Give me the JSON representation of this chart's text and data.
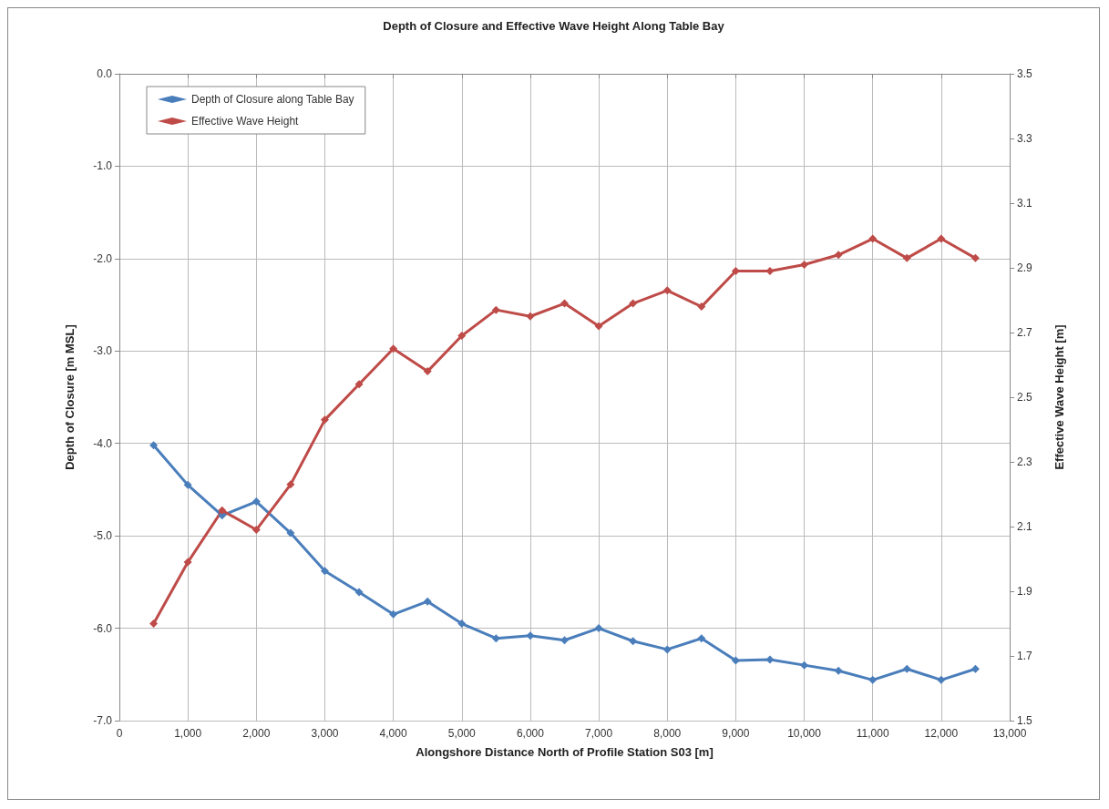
{
  "chart_data": {
    "type": "line",
    "title": "Depth of Closure and Effective Wave Height Along Table Bay",
    "xlabel": "Alongshore Distance North of Profile Station S03 [m]",
    "ylabel": "Depth of Closure [m MSL]",
    "y2label": "Effective Wave Height [m]",
    "x": [
      500,
      1000,
      1500,
      2000,
      2500,
      3000,
      3500,
      4000,
      4500,
      5000,
      5500,
      6000,
      6500,
      7000,
      7500,
      8000,
      8500,
      9000,
      9500,
      10000,
      10500,
      11000,
      11500,
      12000,
      12500
    ],
    "series": [
      {
        "name": "Depth of Closure along Table Bay",
        "color": "#4a7ebb",
        "values": [
          -4.02,
          -4.45,
          -4.78,
          -4.63,
          -4.97,
          -5.38,
          -5.61,
          -5.85,
          -5.71,
          -5.95,
          -6.11,
          -6.08,
          -6.13,
          -6.0,
          -6.14,
          -6.23,
          -6.11,
          -6.35,
          -6.34,
          -6.4,
          -6.46,
          -6.56,
          -6.44,
          -6.56,
          -6.44
        ]
      },
      {
        "name": "Effective Wave Height",
        "color": "#be4b48",
        "axis": "y2",
        "values": [
          1.8,
          1.99,
          2.15,
          2.09,
          2.23,
          2.43,
          2.54,
          2.65,
          2.58,
          2.69,
          2.77,
          2.75,
          2.79,
          2.72,
          2.79,
          2.83,
          2.78,
          2.89,
          2.89,
          2.91,
          2.94,
          2.99,
          2.93,
          2.99,
          2.93
        ]
      }
    ],
    "xlim": [
      0,
      13000
    ],
    "xticks": [
      0,
      {
        "value": 1000,
        "label": "1,000"
      },
      {
        "value": 2000,
        "label": "2,000"
      },
      {
        "value": 3000,
        "label": "3,000"
      },
      {
        "value": 4000,
        "label": "4,000"
      },
      {
        "value": 5000,
        "label": "5,000"
      },
      {
        "value": 6000,
        "label": "6,000"
      },
      {
        "value": 7000,
        "label": "7,000"
      },
      {
        "value": 8000,
        "label": "8,000"
      },
      {
        "value": 9000,
        "label": "9,000"
      },
      {
        "value": 10000,
        "label": "10,000"
      },
      {
        "value": 11000,
        "label": "11,000"
      },
      {
        "value": 12000,
        "label": "12,000"
      },
      {
        "value": 13000,
        "label": "13,000"
      }
    ],
    "ylim": [
      -7,
      0
    ],
    "yticks": [
      {
        "value": 0,
        "label": "0.0"
      },
      {
        "value": -1,
        "label": "-1.0"
      },
      {
        "value": -2,
        "label": "-2.0"
      },
      {
        "value": -3,
        "label": "-3.0"
      },
      {
        "value": -4,
        "label": "-4.0"
      },
      {
        "value": -5,
        "label": "-5.0"
      },
      {
        "value": -6,
        "label": "-6.0"
      },
      {
        "value": -7,
        "label": "-7.0"
      }
    ],
    "y2lim": [
      1.5,
      3.5
    ],
    "y2ticks": [
      1.5,
      1.7,
      1.9,
      2.1,
      2.3,
      2.5,
      2.7,
      2.9,
      3.1,
      3.3,
      3.5
    ],
    "grid": true,
    "legend": "top left",
    "marker": "diamond",
    "line_style": "solid"
  }
}
